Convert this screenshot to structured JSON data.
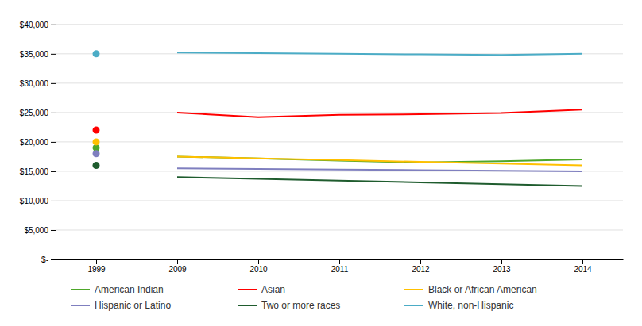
{
  "chart_data": {
    "type": "line",
    "categories": [
      "1999",
      "2009",
      "2010",
      "2011",
      "2012",
      "2013",
      "2014"
    ],
    "series": [
      {
        "name": "American Indian",
        "type": "line",
        "color": "#4EA72A",
        "values": [
          null,
          17500,
          17200,
          16800,
          16500,
          16700,
          17000
        ]
      },
      {
        "type": "scatter",
        "marker": "circle",
        "color": "#4EA72A",
        "values": [
          19000,
          null,
          null,
          null,
          null,
          null,
          null
        ]
      },
      {
        "name": "Asian",
        "type": "line",
        "color": "#FF0000",
        "values": [
          null,
          25000,
          24200,
          24600,
          24700,
          24900,
          25500
        ]
      },
      {
        "type": "scatter",
        "marker": "circle",
        "color": "#FF0000",
        "values": [
          22000,
          null,
          null,
          null,
          null,
          null,
          null
        ]
      },
      {
        "name": "Black or African American",
        "type": "line",
        "color": "#FFC000",
        "values": [
          null,
          17500,
          17200,
          16900,
          16600,
          16300,
          16000
        ]
      },
      {
        "type": "scatter",
        "marker": "circle",
        "color": "#FFC000",
        "values": [
          20000,
          null,
          null,
          null,
          null,
          null,
          null
        ]
      },
      {
        "name": "Hispanic or Latino",
        "type": "line",
        "color": "#7F7FBF",
        "values": [
          null,
          15500,
          15400,
          15300,
          15200,
          15100,
          15000
        ]
      },
      {
        "type": "scatter",
        "marker": "circle",
        "color": "#7F7FBF",
        "values": [
          18000,
          null,
          null,
          null,
          null,
          null,
          null
        ]
      },
      {
        "name": "Two or more races",
        "type": "line",
        "color": "#1F5C2E",
        "values": [
          null,
          14000,
          13700,
          13400,
          13100,
          12800,
          12500
        ]
      },
      {
        "type": "scatter",
        "marker": "circle",
        "color": "#1F5C2E",
        "values": [
          16000,
          null,
          null,
          null,
          null,
          null,
          null
        ]
      },
      {
        "name": "White, non-Hispanic",
        "type": "line",
        "color": "#4BACC6",
        "values": [
          null,
          35200,
          35100,
          35000,
          34900,
          34800,
          35000
        ]
      },
      {
        "type": "scatter",
        "marker": "circle",
        "color": "#4BACC6",
        "values": [
          35000,
          null,
          null,
          null,
          null,
          null,
          null
        ]
      }
    ],
    "ylim": [
      0,
      42000
    ],
    "yticks": [
      {
        "value": 0,
        "label": "$-"
      },
      {
        "value": 5000,
        "label": "$5,000"
      },
      {
        "value": 10000,
        "label": "$10,000"
      },
      {
        "value": 15000,
        "label": "$15,000"
      },
      {
        "value": 20000,
        "label": "$20,000"
      },
      {
        "value": 25000,
        "label": "$25,000"
      },
      {
        "value": 30000,
        "label": "$30,000"
      },
      {
        "value": 35000,
        "label": "$35,000"
      },
      {
        "value": 40000,
        "label": "$40,000"
      }
    ],
    "grid": true,
    "legend": "bottom"
  }
}
